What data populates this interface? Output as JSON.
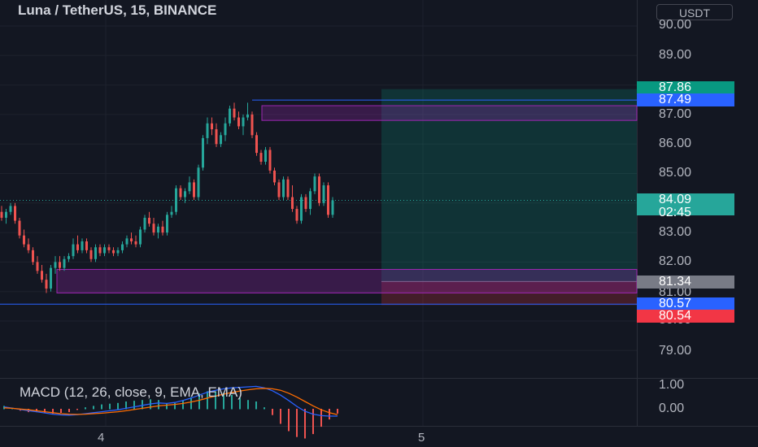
{
  "header": {
    "title": "Luna / TetherUS, 15, BINANCE"
  },
  "currency": {
    "label": "USDT"
  },
  "price_axis": {
    "ticks": [
      "90.00",
      "89.00",
      "87.00",
      "86.00",
      "85.00",
      "83.00",
      "82.00",
      "81.00",
      "80.00",
      "79.00"
    ]
  },
  "time_axis": {
    "ticks": [
      "4",
      "5"
    ]
  },
  "price_tags": {
    "take_profit": "87.86",
    "high_line": "87.49",
    "current_price": "84.09",
    "countdown": "02:45",
    "entry": "81.34",
    "low_line": "80.57",
    "stop_loss": "80.54"
  },
  "macd": {
    "title": "MACD (12, 26, close, 9, EMA, EMA)",
    "ticks": [
      "1.00",
      "0.00"
    ],
    "colors": {
      "macd": "#2962ff",
      "signal": "#ff6d00"
    }
  },
  "colors": {
    "up": "#26a69a",
    "down": "#ef5350",
    "background": "#131722",
    "zone": "#9c27b0",
    "profit": "#089981",
    "loss": "#f23645",
    "line": "#2962ff"
  },
  "chart_data": {
    "type": "candlestick",
    "symbol": "Luna / TetherUS",
    "interval": "15",
    "exchange": "BINANCE",
    "y_range": [
      79.0,
      90.0
    ],
    "last_price": 84.09,
    "zones": [
      {
        "low": 86.8,
        "high": 87.3
      },
      {
        "low": 80.95,
        "high": 81.75
      }
    ],
    "horizontal_lines": [
      87.49,
      80.57
    ],
    "position": {
      "entry": 81.34,
      "target": 87.86,
      "stop": 80.54
    },
    "candles": [
      [
        83.7,
        83.9,
        83.4,
        83.5
      ],
      [
        83.5,
        83.8,
        83.3,
        83.7
      ],
      [
        83.7,
        84.0,
        83.6,
        83.9
      ],
      [
        83.9,
        84.0,
        83.3,
        83.4
      ],
      [
        83.4,
        83.5,
        82.8,
        82.9
      ],
      [
        82.9,
        83.1,
        82.5,
        82.6
      ],
      [
        82.6,
        82.8,
        82.3,
        82.4
      ],
      [
        82.4,
        82.5,
        81.9,
        82.0
      ],
      [
        82.0,
        82.2,
        81.6,
        81.7
      ],
      [
        81.7,
        81.9,
        81.3,
        81.4
      ],
      [
        81.4,
        81.6,
        80.95,
        81.1
      ],
      [
        81.1,
        81.9,
        81.0,
        81.8
      ],
      [
        81.8,
        82.2,
        81.6,
        82.0
      ],
      [
        82.0,
        82.2,
        81.7,
        81.8
      ],
      [
        81.8,
        82.2,
        81.7,
        82.1
      ],
      [
        82.1,
        82.3,
        82.0,
        82.2
      ],
      [
        82.2,
        82.8,
        82.1,
        82.6
      ],
      [
        82.6,
        82.9,
        82.3,
        82.4
      ],
      [
        82.4,
        82.8,
        82.3,
        82.7
      ],
      [
        82.7,
        82.8,
        82.3,
        82.4
      ],
      [
        82.4,
        82.5,
        82.0,
        82.1
      ],
      [
        82.1,
        82.6,
        82.0,
        82.5
      ],
      [
        82.5,
        82.6,
        82.2,
        82.3
      ],
      [
        82.3,
        82.6,
        82.2,
        82.5
      ],
      [
        82.5,
        82.6,
        82.3,
        82.4
      ],
      [
        82.4,
        82.5,
        82.2,
        82.3
      ],
      [
        82.3,
        82.5,
        82.2,
        82.4
      ],
      [
        82.4,
        82.7,
        82.3,
        82.6
      ],
      [
        82.6,
        82.9,
        82.5,
        82.8
      ],
      [
        82.8,
        83.0,
        82.6,
        82.7
      ],
      [
        82.7,
        82.9,
        82.5,
        82.6
      ],
      [
        82.6,
        83.2,
        82.5,
        83.1
      ],
      [
        83.1,
        83.6,
        83.0,
        83.5
      ],
      [
        83.5,
        83.7,
        83.2,
        83.3
      ],
      [
        83.3,
        83.5,
        82.9,
        83.0
      ],
      [
        83.0,
        83.3,
        82.8,
        83.2
      ],
      [
        83.2,
        83.4,
        82.9,
        83.0
      ],
      [
        83.0,
        83.7,
        82.9,
        83.6
      ],
      [
        83.6,
        83.9,
        83.5,
        83.7
      ],
      [
        83.7,
        84.6,
        83.6,
        84.5
      ],
      [
        84.5,
        84.6,
        84.1,
        84.2
      ],
      [
        84.2,
        84.5,
        84.0,
        84.4
      ],
      [
        84.4,
        84.9,
        84.3,
        84.7
      ],
      [
        84.7,
        84.8,
        84.1,
        84.2
      ],
      [
        84.2,
        85.3,
        84.1,
        85.2
      ],
      [
        85.2,
        86.3,
        85.1,
        86.2
      ],
      [
        86.2,
        86.9,
        86.0,
        86.7
      ],
      [
        86.7,
        86.9,
        86.3,
        86.5
      ],
      [
        86.5,
        86.7,
        85.9,
        86.0
      ],
      [
        86.0,
        86.4,
        85.9,
        86.3
      ],
      [
        86.3,
        86.9,
        86.1,
        86.7
      ],
      [
        86.7,
        87.3,
        86.6,
        87.2
      ],
      [
        87.2,
        87.4,
        86.8,
        86.9
      ],
      [
        86.9,
        87.1,
        86.5,
        86.6
      ],
      [
        86.6,
        87.0,
        86.3,
        86.9
      ],
      [
        86.9,
        87.4,
        86.8,
        87.0
      ],
      [
        87.0,
        87.1,
        86.2,
        86.3
      ],
      [
        86.3,
        86.4,
        85.6,
        85.7
      ],
      [
        85.7,
        85.8,
        85.3,
        85.4
      ],
      [
        85.4,
        85.9,
        85.3,
        85.8
      ],
      [
        85.8,
        85.9,
        85.0,
        85.1
      ],
      [
        85.1,
        85.2,
        84.6,
        84.7
      ],
      [
        84.7,
        84.8,
        84.1,
        84.2
      ],
      [
        84.2,
        84.9,
        84.1,
        84.8
      ],
      [
        84.8,
        84.9,
        84.1,
        84.2
      ],
      [
        84.2,
        84.6,
        83.7,
        83.8
      ],
      [
        83.8,
        83.9,
        83.3,
        83.4
      ],
      [
        83.4,
        84.3,
        83.3,
        84.2
      ],
      [
        84.2,
        84.3,
        83.7,
        83.8
      ],
      [
        83.8,
        84.5,
        83.6,
        84.4
      ],
      [
        84.4,
        85.0,
        84.3,
        84.9
      ],
      [
        84.9,
        85.0,
        83.9,
        84.0
      ],
      [
        84.0,
        84.7,
        83.9,
        84.6
      ],
      [
        84.6,
        84.7,
        83.5,
        83.6
      ],
      [
        83.6,
        84.2,
        83.5,
        84.09
      ]
    ],
    "macd_line": [
      0.08,
      0.03,
      -0.03,
      -0.08,
      -0.12,
      -0.17,
      -0.22,
      -0.25,
      -0.26,
      -0.24,
      -0.2,
      -0.16,
      -0.12,
      -0.08,
      -0.04,
      0.02,
      0.08,
      0.14,
      0.2,
      0.24,
      0.22,
      0.26,
      0.34,
      0.44,
      0.56,
      0.68,
      0.76,
      0.82,
      0.86,
      0.88,
      0.9,
      0.92,
      0.86,
      0.74,
      0.56,
      0.34,
      0.1,
      -0.1,
      -0.22,
      -0.28,
      -0.3,
      -0.3
    ],
    "signal_line": [
      0.04,
      0.02,
      -0.01,
      -0.04,
      -0.08,
      -0.12,
      -0.16,
      -0.2,
      -0.22,
      -0.23,
      -0.22,
      -0.2,
      -0.18,
      -0.15,
      -0.12,
      -0.08,
      -0.03,
      0.02,
      0.07,
      0.12,
      0.15,
      0.18,
      0.22,
      0.28,
      0.35,
      0.44,
      0.52,
      0.6,
      0.67,
      0.73,
      0.78,
      0.82,
      0.84,
      0.82,
      0.76,
      0.64,
      0.48,
      0.3,
      0.12,
      -0.04,
      -0.16,
      -0.24
    ],
    "macd_range": [
      -0.5,
      1.0
    ]
  }
}
